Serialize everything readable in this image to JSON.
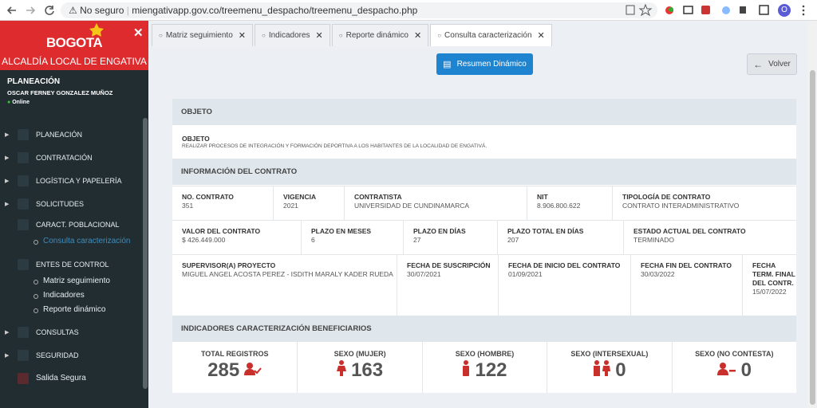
{
  "browser": {
    "security": "No seguro",
    "url": "miengativapp.gov.co/treemenu_despacho/treemenu_despacho.php",
    "profile": "O"
  },
  "sidebar": {
    "brand": "BOGOTA",
    "subtitle": "ALCALDÍA LOCAL DE ENGATIVA",
    "user": {
      "area": "PLANEACIÓN",
      "name": "OSCAR FERNEY GONZALEZ MUÑOZ",
      "status": "Online"
    },
    "menu": [
      {
        "label": "PLANEACIÓN"
      },
      {
        "label": "CONTRATACIÓN"
      },
      {
        "label": "LOGÍSTICA Y PAPELERÍA"
      },
      {
        "label": "SOLICITUDES"
      },
      {
        "label": "CARACT. POBLACIONAL",
        "children": [
          "Consulta caracterización"
        ]
      },
      {
        "label": "ENTES DE CONTROL",
        "children": [
          "Matriz seguimiento",
          "Indicadores",
          "Reporte dinámico"
        ]
      },
      {
        "label": "CONSULTAS"
      },
      {
        "label": "SEGURIDAD"
      }
    ],
    "logout": "Salida Segura"
  },
  "tabs": [
    "Matriz seguimiento",
    "Indicadores",
    "Reporte dinámico",
    "Consulta caracterización"
  ],
  "toolbar": {
    "summary_button": "Resumen Dinámico",
    "back_button": "Volver"
  },
  "objeto": {
    "title": "OBJETO",
    "label": "OBJETO",
    "text": "REALIZAR PROCESOS DE INTEGRACIÓN Y FORMACIÓN DEPORTIVA A LOS HABITANTES DE LA LOCALIDAD DE ENGATIVÁ."
  },
  "contract": {
    "title": "INFORMACIÓN DEL CONTRATO",
    "rows": [
      [
        {
          "label": "NO. CONTRATO",
          "value": "351"
        },
        {
          "label": "VIGENCIA",
          "value": "2021"
        },
        {
          "label": "CONTRATISTA",
          "value": "UNIVERSIDAD DE CUNDINAMARCA"
        },
        {
          "label": "NIT",
          "value": "8.906.800.622"
        },
        {
          "label": "TIPOLOGÍA DE CONTRATO",
          "value": "CONTRATO INTERADMINISTRATIVO"
        }
      ],
      [
        {
          "label": "VALOR DEL CONTRATO",
          "value": "$ 426.449.000"
        },
        {
          "label": "PLAZO EN MESES",
          "value": "6"
        },
        {
          "label": "PLAZO EN DÍAS",
          "value": "27"
        },
        {
          "label": "PLAZO TOTAL EN DÍAS",
          "value": "207"
        },
        {
          "label": "ESTADO ACTUAL DEL CONTRATO",
          "value": "TERMINADO"
        }
      ],
      [
        {
          "label": "SUPERVISOR(A) PROYECTO",
          "value": "MIGUEL ANGEL ACOSTA PEREZ - ISDITH MARALY KADER RUEDA"
        },
        {
          "label": "FECHA DE SUSCRIPCIÓN",
          "value": "30/07/2021"
        },
        {
          "label": "FECHA DE INICIO DEL CONTRATO",
          "value": "01/09/2021"
        },
        {
          "label": "FECHA FIN DEL CONTRATO",
          "value": "30/03/2022"
        },
        {
          "label": "FECHA TERM. FINAL DEL CONTR.",
          "value": "15/07/2022"
        }
      ]
    ]
  },
  "indicators": {
    "title": "INDICADORES CARACTERIZACIÓN BENEFICIARIOS",
    "items": [
      {
        "label": "TOTAL REGISTROS",
        "value": 285
      },
      {
        "label": "SEXO (MUJER)",
        "value": 163
      },
      {
        "label": "SEXO (HOMBRE)",
        "value": 122
      },
      {
        "label": "SEXO (INTERSEXUAL)",
        "value": 0
      },
      {
        "label": "SEXO (NO CONTESTA)",
        "value": 0
      }
    ]
  }
}
